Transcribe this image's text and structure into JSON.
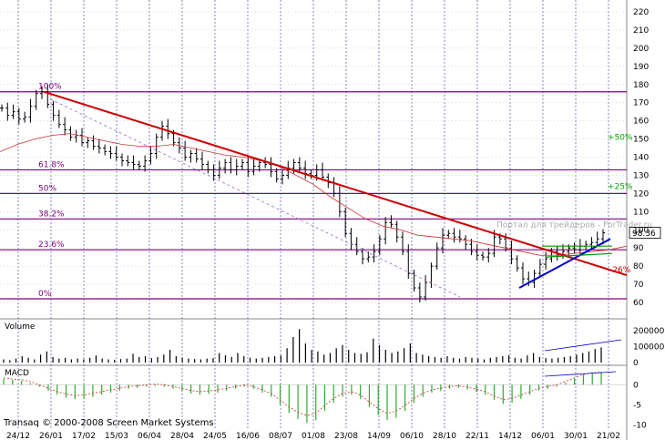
{
  "chart_data": [
    {
      "type": "candlestick",
      "panel": "price",
      "ylim": [
        55,
        225
      ],
      "y_ticks": [
        60,
        70,
        80,
        90,
        100,
        110,
        120,
        130,
        140,
        150,
        160,
        170,
        180,
        190,
        200,
        210,
        220
      ],
      "grid": true,
      "x_ticks": [
        "24/12",
        "26/01",
        "17/02",
        "15/03",
        "06/04",
        "28/04",
        "24/05",
        "16/06",
        "08/07",
        "01/08",
        "23/08",
        "14/09",
        "06/10",
        "28/10",
        "22/11",
        "14/12",
        "06/01",
        "30/01",
        "21/02"
      ],
      "series": [
        {
          "name": "price",
          "close": [
            167,
            163,
            165,
            161,
            162,
            168,
            175,
            176,
            169,
            163,
            158,
            155,
            151,
            152,
            148,
            149,
            146,
            145,
            143,
            142,
            140,
            138,
            137,
            136,
            135,
            138,
            142,
            151,
            157,
            153,
            148,
            145,
            140,
            142,
            139,
            136,
            133,
            130,
            134,
            137,
            133,
            135,
            137,
            132,
            135,
            137,
            136,
            132,
            128,
            130,
            134,
            137,
            134,
            131,
            130,
            133,
            129,
            126,
            120,
            110,
            98,
            92,
            88,
            84,
            85,
            88,
            95,
            104,
            103,
            96,
            88,
            76,
            68,
            63,
            71,
            80,
            90,
            97,
            98,
            96,
            95,
            92,
            88,
            86,
            85,
            87,
            96,
            95,
            90,
            84,
            79,
            73,
            71,
            76,
            81,
            84,
            88,
            86,
            88,
            90,
            89,
            91,
            92,
            93,
            95,
            98.36
          ]
        },
        {
          "name": "moving average",
          "values": [
            143,
            147,
            150,
            152,
            153,
            151,
            149,
            147,
            146,
            146,
            147,
            145,
            143,
            141,
            140,
            138,
            135,
            130,
            125,
            118,
            112,
            106,
            102,
            100,
            97,
            96,
            95,
            94,
            92,
            90,
            88,
            86,
            86,
            87,
            88,
            89,
            91
          ]
        }
      ],
      "annotations": {
        "fib_levels": [
          {
            "label": "100%",
            "value": 176
          },
          {
            "label": "61.8%",
            "value": 133
          },
          {
            "label": "50%",
            "value": 120
          },
          {
            "label": "38.2%",
            "value": 106
          },
          {
            "label": "23.6%",
            "value": 89
          },
          {
            "label": "0%",
            "value": 62
          }
        ],
        "targets": [
          "+50%",
          "+25%",
          "-26%"
        ],
        "last_price": "98.36",
        "watermark": "Портал для трейдеров - ForTrader.ru",
        "colors": {
          "fib": "#800080",
          "downtrend": "#cc0000",
          "uptrend": "#0000cc",
          "ma": "#cc3333",
          "targets": "#00aa00",
          "neg_target": "#cc0000"
        }
      }
    },
    {
      "type": "bar",
      "panel": "volume",
      "title": "Volume",
      "ylim": [
        0,
        240000
      ],
      "y_ticks": [
        "200000",
        "100000",
        "0"
      ],
      "values": [
        20000,
        15000,
        25000,
        40000,
        30000,
        20000,
        50000,
        70000,
        35000,
        25000,
        30000,
        20000,
        25000,
        20000,
        30000,
        45000,
        25000,
        20000,
        18000,
        22000,
        25000,
        55000,
        35000,
        40000,
        28000,
        35000,
        50000,
        80000,
        40000,
        30000,
        25000,
        22000,
        20000,
        25000,
        28000,
        60000,
        45000,
        35000,
        60000,
        40000,
        30000,
        25000,
        30000,
        35000,
        40000,
        45000,
        90000,
        160000,
        210000,
        120000,
        80000,
        70000,
        50000,
        60000,
        90000,
        110000,
        80000,
        60000,
        55000,
        65000,
        150000,
        110000,
        80000,
        60000,
        70000,
        90000,
        120000,
        60000,
        50000,
        40000,
        35000,
        30000,
        40000,
        30000,
        25000,
        35000,
        30000,
        25000,
        20000,
        30000,
        35000,
        40000,
        45000,
        30000,
        25000,
        45000,
        60000,
        35000,
        28000,
        25000,
        30000,
        35000,
        40000,
        50000,
        60000,
        70000,
        85000,
        95000
      ]
    },
    {
      "type": "bar",
      "panel": "macd",
      "title": "MACD",
      "ylim": [
        -11,
        5
      ],
      "y_ticks": [
        "0",
        "-5",
        "-10"
      ],
      "values": [
        1.5,
        1.2,
        1.0,
        0.4,
        -0.5,
        -1.5,
        -2.5,
        -3.2,
        -3.6,
        -3.5,
        -3.0,
        -2.5,
        -2.0,
        -1.5,
        -1.0,
        -0.8,
        -0.5,
        -0.3,
        -0.5,
        -1.0,
        -1.6,
        -2.2,
        -2.5,
        -2.3,
        -2.0,
        -1.5,
        -1.0,
        -0.5,
        -1.0,
        -2.0,
        -3.0,
        -5.0,
        -7.0,
        -8.5,
        -9.5,
        -8.8,
        -6.5,
        -4.5,
        -3.0,
        -2.5,
        -3.5,
        -5.5,
        -7.5,
        -8.8,
        -8.2,
        -6.5,
        -4.5,
        -3.0,
        -2.0,
        -1.5,
        -1.0,
        -0.8,
        -1.2,
        -1.8,
        -2.5,
        -3.8,
        -4.8,
        -4.5,
        -3.5,
        -2.5,
        -1.5,
        -1.0,
        -0.5,
        0.5,
        1.5,
        2.5,
        3.0,
        3.2
      ]
    }
  ],
  "footer": {
    "copyright": "Transaq © 2000-2008 Screen Market Systems"
  }
}
